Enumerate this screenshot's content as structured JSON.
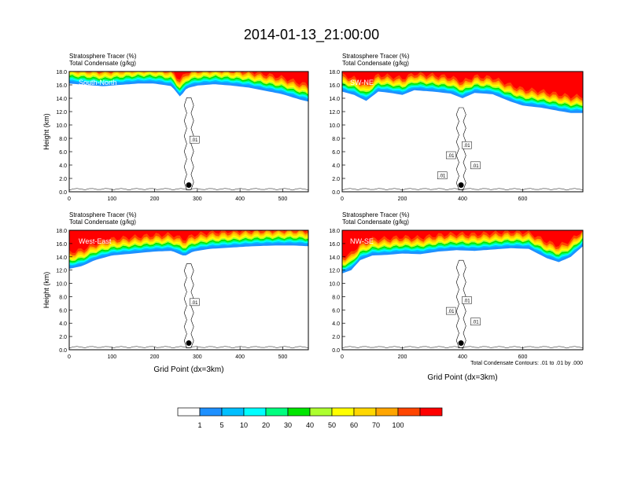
{
  "figure": {
    "title": "2014-01-13_21:00:00",
    "contour_note": "Total Condensate Contours: .01 to .01 by .000",
    "colorbar": {
      "colors": [
        "#ffffff",
        "#1e90ff",
        "#00bfff",
        "#00ffff",
        "#00ff7f",
        "#00e600",
        "#adff2f",
        "#ffff00",
        "#ffd700",
        "#ffa500",
        "#ff4500",
        "#ff0000"
      ],
      "labels": [
        "1",
        "5",
        "10",
        "20",
        "30",
        "40",
        "50",
        "60",
        "70",
        "100"
      ]
    }
  },
  "chart_data": [
    {
      "type": "area",
      "panel": "South-North",
      "title_line1": "Stratosphere Tracer   (%)",
      "title_line2": "Total Condensate   (g/kg)",
      "xlabel": "",
      "ylabel": "Height (km)",
      "xlim": [
        0,
        560
      ],
      "ylim": [
        0,
        18
      ],
      "xticks": [
        "0",
        "100",
        "200",
        "300",
        "400",
        "500"
      ],
      "xtick_values": [
        0,
        100,
        200,
        300,
        400,
        500
      ],
      "yticks": [
        "0.0",
        "2.0",
        "4.0",
        "6.0",
        "8.0",
        "10.0",
        "12.0",
        "14.0",
        "16.0",
        "18.0"
      ],
      "tracer_base_km": [
        [
          0,
          16.2
        ],
        [
          40,
          16.0
        ],
        [
          80,
          15.8
        ],
        [
          120,
          16.0
        ],
        [
          160,
          16.2
        ],
        [
          200,
          16.2
        ],
        [
          240,
          15.8
        ],
        [
          260,
          14.2
        ],
        [
          275,
          15.5
        ],
        [
          300,
          15.9
        ],
        [
          340,
          16.1
        ],
        [
          380,
          15.9
        ],
        [
          420,
          15.6
        ],
        [
          460,
          15.1
        ],
        [
          500,
          14.6
        ],
        [
          540,
          13.8
        ],
        [
          560,
          13.5
        ]
      ],
      "station_x": 280,
      "contour_labels": [
        ".01"
      ]
    },
    {
      "type": "area",
      "panel": "SW-NE",
      "title_line1": "Stratosphere Tracer   (%)",
      "title_line2": "Total Condensate   (g/kg)",
      "xlabel": "",
      "ylabel": "",
      "xlim": [
        0,
        800
      ],
      "ylim": [
        0,
        18
      ],
      "xticks": [
        "0",
        "200",
        "400",
        "600"
      ],
      "xtick_values": [
        0,
        200,
        400,
        600
      ],
      "yticks": [
        "0.0",
        "2.0",
        "4.0",
        "6.0",
        "8.0",
        "10.0",
        "12.0",
        "14.0",
        "16.0",
        "18.0"
      ],
      "tracer_base_km": [
        [
          0,
          15.0
        ],
        [
          40,
          14.5
        ],
        [
          80,
          13.6
        ],
        [
          120,
          15.0
        ],
        [
          160,
          14.8
        ],
        [
          200,
          14.5
        ],
        [
          240,
          15.2
        ],
        [
          300,
          15.0
        ],
        [
          360,
          14.7
        ],
        [
          400,
          14.0
        ],
        [
          440,
          14.8
        ],
        [
          500,
          14.6
        ],
        [
          560,
          13.5
        ],
        [
          600,
          12.9
        ],
        [
          660,
          12.6
        ],
        [
          720,
          12.1
        ],
        [
          760,
          11.8
        ],
        [
          800,
          11.8
        ]
      ],
      "station_x": 395,
      "contour_labels": [
        ".01",
        ".01",
        ".01",
        ".01"
      ]
    },
    {
      "type": "area",
      "panel": "West-East",
      "title_line1": "Stratosphere Tracer   (%)",
      "title_line2": "Total Condensate   (g/kg)",
      "xlabel": "Grid Point (dx=3km)",
      "ylabel": "Height (km)",
      "xlim": [
        0,
        560
      ],
      "ylim": [
        0,
        18
      ],
      "xticks": [
        "0",
        "100",
        "200",
        "300",
        "400",
        "500"
      ],
      "xtick_values": [
        0,
        100,
        200,
        300,
        400,
        500
      ],
      "yticks": [
        "0.0",
        "2.0",
        "4.0",
        "6.0",
        "8.0",
        "10.0",
        "12.0",
        "14.0",
        "16.0",
        "18.0"
      ],
      "tracer_base_km": [
        [
          0,
          12.2
        ],
        [
          30,
          12.6
        ],
        [
          60,
          13.5
        ],
        [
          100,
          14.2
        ],
        [
          150,
          14.5
        ],
        [
          200,
          14.8
        ],
        [
          240,
          14.9
        ],
        [
          270,
          14.1
        ],
        [
          290,
          14.8
        ],
        [
          330,
          15.2
        ],
        [
          380,
          15.4
        ],
        [
          430,
          15.6
        ],
        [
          480,
          15.7
        ],
        [
          530,
          15.7
        ],
        [
          560,
          15.6
        ]
      ],
      "station_x": 280,
      "contour_labels": [
        ".01"
      ]
    },
    {
      "type": "area",
      "panel": "NW-SE",
      "title_line1": "Stratosphere Tracer   (%)",
      "title_line2": "Total Condensate   (g/kg)",
      "xlabel": "Grid Point (dx=3km)",
      "ylabel": "",
      "xlim": [
        0,
        800
      ],
      "ylim": [
        0,
        18
      ],
      "xticks": [
        "0",
        "200",
        "400",
        "600"
      ],
      "xtick_values": [
        0,
        200,
        400,
        600
      ],
      "yticks": [
        "0.0",
        "2.0",
        "4.0",
        "6.0",
        "8.0",
        "10.0",
        "12.0",
        "14.0",
        "16.0",
        "18.0"
      ],
      "tracer_base_km": [
        [
          0,
          11.5
        ],
        [
          30,
          12.0
        ],
        [
          60,
          13.5
        ],
        [
          100,
          14.2
        ],
        [
          150,
          14.3
        ],
        [
          200,
          14.5
        ],
        [
          260,
          14.4
        ],
        [
          320,
          14.8
        ],
        [
          380,
          15.0
        ],
        [
          440,
          14.9
        ],
        [
          500,
          15.1
        ],
        [
          560,
          15.3
        ],
        [
          620,
          15.2
        ],
        [
          680,
          13.8
        ],
        [
          720,
          13.2
        ],
        [
          760,
          14.0
        ],
        [
          800,
          15.6
        ]
      ],
      "station_x": 395,
      "contour_labels": [
        ".01",
        ".01",
        ".01"
      ]
    }
  ]
}
